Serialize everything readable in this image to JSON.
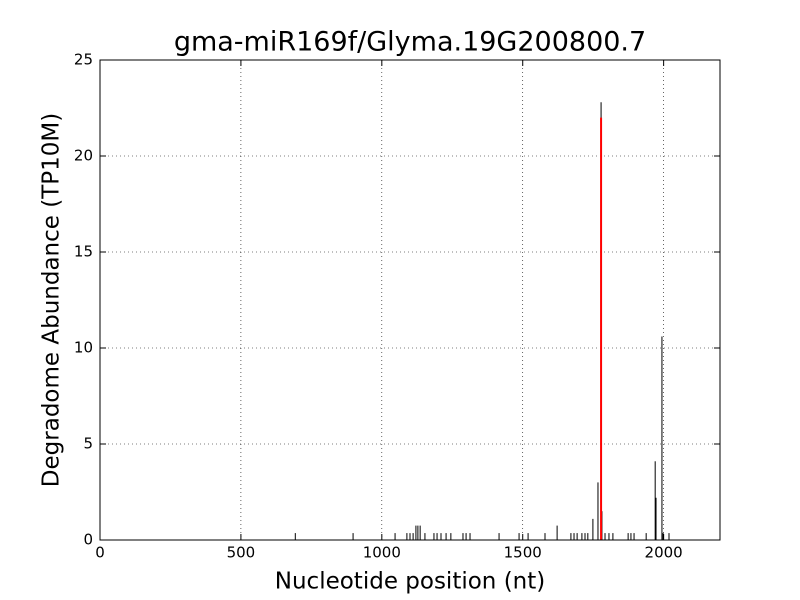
{
  "chart_data": {
    "type": "stem",
    "title": "gma-miR169f/Glyma.19G200800.7",
    "x_label": "Nucleotide position (nt)",
    "y_label": "Degradome Abundance (TP10M)",
    "xlim": [
      0,
      2200
    ],
    "xticks": [
      0,
      500,
      1000,
      1500,
      2000
    ],
    "ylim": [
      0,
      25
    ],
    "yticks": [
      0,
      5,
      10,
      15,
      20,
      25
    ],
    "grid": true,
    "series": [
      {
        "color": "#000000",
        "x": [
          693,
          898,
          1047,
          1089,
          1100,
          1111,
          1121,
          1128,
          1136,
          1153,
          1185,
          1196,
          1210,
          1228,
          1245,
          1288,
          1299,
          1313,
          1416,
          1487,
          1519,
          1579,
          1622,
          1671,
          1682,
          1693,
          1710,
          1721,
          1731,
          1749,
          1767,
          1778,
          1781,
          1792,
          1806,
          1820,
          1874,
          1884,
          1895,
          1938,
          1970,
          1973,
          1994,
          1998,
          2019
        ],
        "values": [
          0.36,
          0.36,
          0.36,
          0.36,
          0.36,
          0.36,
          0.75,
          0.75,
          0.75,
          0.36,
          0.36,
          0.36,
          0.36,
          0.36,
          0.36,
          0.36,
          0.36,
          0.36,
          0.36,
          0.36,
          0.36,
          0.36,
          0.75,
          0.36,
          0.36,
          0.36,
          0.36,
          0.36,
          0.36,
          1.1,
          3.0,
          22.8,
          1.5,
          0.36,
          0.36,
          0.36,
          0.36,
          0.36,
          0.36,
          0.36,
          4.1,
          2.2,
          10.6,
          0.36,
          0.36
        ]
      },
      {
        "color": "#ff0000",
        "x": [
          1778
        ],
        "values": [
          22
        ]
      }
    ]
  }
}
